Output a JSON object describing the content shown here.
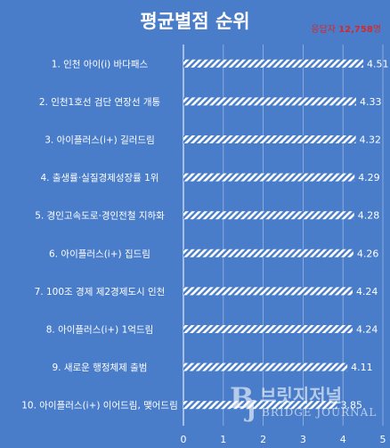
{
  "title": "평균별점 순위",
  "respondents": {
    "label": "응답자",
    "count": "12,758",
    "unit": "명"
  },
  "watermark": {
    "name": "브릿지저널",
    "sub": "BRIDGE JOURNAL"
  },
  "colors": {
    "background": "#4a7dc9",
    "bar_stripe": "#ffffff",
    "accent": "#d62828"
  },
  "chart_data": {
    "type": "bar",
    "orientation": "horizontal",
    "title": "평균별점 순위",
    "categories": [
      "1. 인천 아이(i) 바다패스",
      "2. 인천1호선 검단 연장선 개통",
      "3. 아이플러스(i+) 길러드림",
      "4. 출생률·실질경제성장률 1위",
      "5. 경인고속도로·경인전철 지하화",
      "6. 아이플러스(i+) 집드림",
      "7. 100조 경제 제2경제도시 인천",
      "8. 아이플러스(i+) 1억드림",
      "9. 새로운 행정체제 출범",
      "10. 아이플러스(i+) 이어드림, 맺어드림"
    ],
    "values": [
      4.51,
      4.33,
      4.32,
      4.29,
      4.28,
      4.26,
      4.24,
      4.24,
      4.11,
      3.85
    ],
    "value_labels": [
      "4.51",
      "4.33",
      "4.32",
      "4.29",
      "4.28",
      "4.26",
      "4.24",
      "4.24",
      "4.11",
      "3.85"
    ],
    "xlim": [
      0,
      5
    ],
    "xticks": [
      "0",
      "1",
      "2",
      "3",
      "4",
      "5"
    ],
    "grid": true,
    "legend": "none"
  }
}
